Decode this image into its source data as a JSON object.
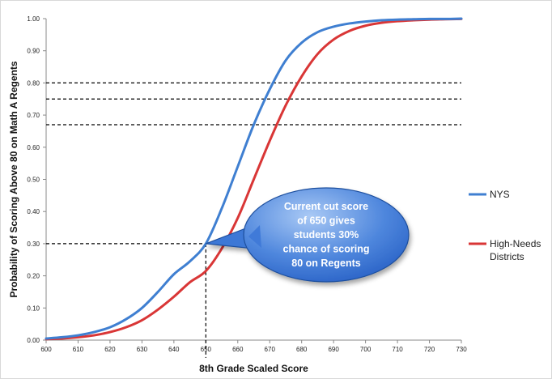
{
  "colors": {
    "nys": "#3f7fd1",
    "high_needs": "#d93636",
    "callout_fill_light": "#8fb8f0",
    "callout_fill_dark": "#2a63c7",
    "callout_stroke": "#1f4f9e",
    "reference_line": "#000000",
    "axis": "#888888"
  },
  "chart_data": {
    "type": "line",
    "xlabel": "8th Grade Scaled Score",
    "ylabel": "Probability of Scoring Above 80 on Math A Regents",
    "xlim": [
      600,
      730
    ],
    "ylim": [
      0,
      1
    ],
    "x_ticks": [
      600,
      610,
      620,
      630,
      640,
      650,
      660,
      670,
      680,
      690,
      700,
      710,
      720,
      730
    ],
    "x_tick_labels": [
      "600",
      "610",
      "620",
      "630",
      "640",
      "650",
      "660",
      "670",
      "680",
      "690",
      "700",
      "710",
      "720",
      "730"
    ],
    "y_ticks": [
      0,
      0.1,
      0.2,
      0.3,
      0.4,
      0.5,
      0.6,
      0.7,
      0.8,
      0.9,
      1.0
    ],
    "y_tick_labels": [
      "0.00",
      "0.10",
      "0.20",
      "0.30",
      "0.40",
      "0.50",
      "0.60",
      "0.70",
      "0.80",
      "0.90",
      "1.00"
    ],
    "grid": false,
    "legend_position": "right",
    "x": [
      600,
      605,
      610,
      615,
      620,
      625,
      630,
      635,
      640,
      645,
      650,
      655,
      660,
      665,
      670,
      675,
      680,
      685,
      690,
      695,
      700,
      705,
      710,
      715,
      720,
      725,
      730
    ],
    "series": [
      {
        "name": "NYS",
        "values": [
          0.005,
          0.009,
          0.015,
          0.025,
          0.04,
          0.065,
          0.1,
          0.15,
          0.205,
          0.245,
          0.3,
          0.41,
          0.54,
          0.67,
          0.78,
          0.87,
          0.925,
          0.958,
          0.975,
          0.985,
          0.991,
          0.995,
          0.997,
          0.998,
          0.999,
          0.999,
          1.0
        ]
      },
      {
        "name": "High-Needs\nDistricts",
        "legend_lines": [
          "High-Needs",
          "Districts"
        ],
        "values": [
          0.003,
          0.005,
          0.009,
          0.015,
          0.025,
          0.04,
          0.062,
          0.095,
          0.135,
          0.18,
          0.215,
          0.285,
          0.38,
          0.5,
          0.62,
          0.73,
          0.82,
          0.89,
          0.935,
          0.962,
          0.978,
          0.987,
          0.992,
          0.995,
          0.997,
          0.998,
          0.999
        ]
      }
    ],
    "reference_lines": {
      "horizontal": [
        0.8,
        0.75,
        0.67
      ],
      "horizontal_x_range": [
        600,
        730
      ],
      "cut_point": {
        "x": 650,
        "y": 0.3
      }
    },
    "annotation": {
      "lines": [
        "Current cut score",
        "of 650 gives",
        "students 30%",
        "chance of scoring",
        "80 on Regents"
      ]
    }
  }
}
